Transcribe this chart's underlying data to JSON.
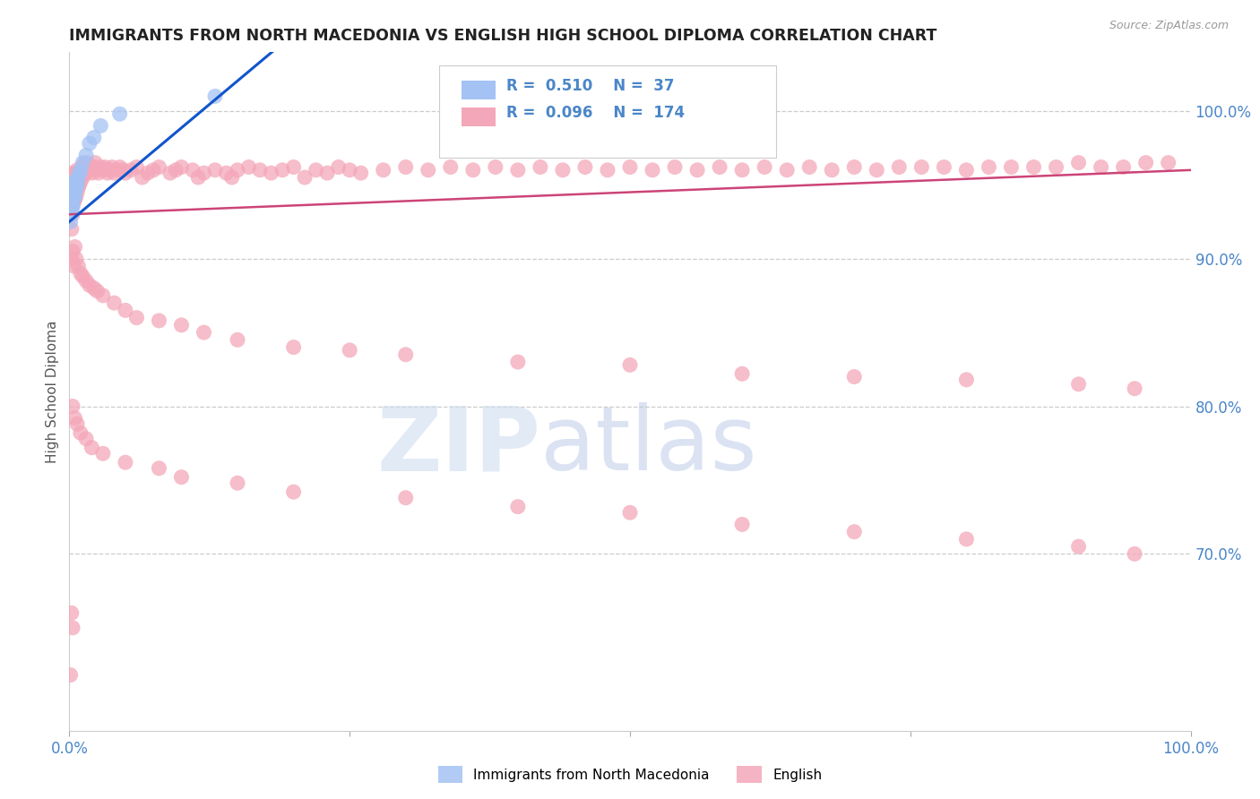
{
  "title": "IMMIGRANTS FROM NORTH MACEDONIA VS ENGLISH HIGH SCHOOL DIPLOMA CORRELATION CHART",
  "source": "Source: ZipAtlas.com",
  "ylabel": "High School Diploma",
  "legend_label1": "Immigrants from North Macedonia",
  "legend_label2": "English",
  "R1": 0.51,
  "N1": 37,
  "R2": 0.096,
  "N2": 174,
  "blue_color": "#a4c2f4",
  "pink_color": "#f4a7b9",
  "blue_line_color": "#1155cc",
  "pink_line_color": "#cc4477",
  "right_ytick_labels": [
    "70.0%",
    "80.0%",
    "90.0%",
    "100.0%"
  ],
  "right_ytick_values": [
    0.7,
    0.8,
    0.9,
    1.0
  ],
  "xlim": [
    0.0,
    1.0
  ],
  "ylim": [
    0.58,
    1.04
  ],
  "background_color": "#ffffff",
  "watermark_zip": "ZIP",
  "watermark_atlas": "atlas",
  "blue_scatter_x": [
    0.001,
    0.001,
    0.001,
    0.001,
    0.002,
    0.002,
    0.002,
    0.002,
    0.002,
    0.003,
    0.003,
    0.003,
    0.003,
    0.003,
    0.003,
    0.004,
    0.004,
    0.004,
    0.004,
    0.005,
    0.005,
    0.005,
    0.005,
    0.006,
    0.006,
    0.007,
    0.007,
    0.008,
    0.009,
    0.01,
    0.012,
    0.015,
    0.018,
    0.022,
    0.028,
    0.045,
    0.13
  ],
  "blue_scatter_y": [
    0.925,
    0.935,
    0.94,
    0.945,
    0.93,
    0.935,
    0.94,
    0.945,
    0.95,
    0.935,
    0.938,
    0.942,
    0.944,
    0.946,
    0.95,
    0.94,
    0.944,
    0.947,
    0.952,
    0.942,
    0.945,
    0.948,
    0.952,
    0.948,
    0.95,
    0.95,
    0.953,
    0.955,
    0.958,
    0.96,
    0.965,
    0.97,
    0.978,
    0.982,
    0.99,
    0.998,
    1.01
  ],
  "pink_scatter_x": [
    0.001,
    0.001,
    0.002,
    0.002,
    0.002,
    0.003,
    0.003,
    0.003,
    0.003,
    0.004,
    0.004,
    0.004,
    0.005,
    0.005,
    0.005,
    0.006,
    0.006,
    0.006,
    0.007,
    0.007,
    0.007,
    0.008,
    0.008,
    0.009,
    0.009,
    0.01,
    0.01,
    0.011,
    0.011,
    0.012,
    0.012,
    0.013,
    0.013,
    0.014,
    0.015,
    0.015,
    0.016,
    0.016,
    0.017,
    0.018,
    0.019,
    0.02,
    0.021,
    0.022,
    0.023,
    0.025,
    0.026,
    0.028,
    0.03,
    0.032,
    0.034,
    0.036,
    0.038,
    0.04,
    0.042,
    0.045,
    0.048,
    0.05,
    0.055,
    0.06,
    0.065,
    0.07,
    0.075,
    0.08,
    0.09,
    0.095,
    0.1,
    0.11,
    0.115,
    0.12,
    0.13,
    0.14,
    0.145,
    0.15,
    0.16,
    0.17,
    0.18,
    0.19,
    0.2,
    0.21,
    0.22,
    0.23,
    0.24,
    0.25,
    0.26,
    0.28,
    0.3,
    0.32,
    0.34,
    0.36,
    0.38,
    0.4,
    0.42,
    0.44,
    0.46,
    0.48,
    0.5,
    0.52,
    0.54,
    0.56,
    0.58,
    0.6,
    0.62,
    0.64,
    0.66,
    0.68,
    0.7,
    0.72,
    0.74,
    0.76,
    0.78,
    0.8,
    0.82,
    0.84,
    0.86,
    0.88,
    0.9,
    0.92,
    0.94,
    0.96,
    0.98,
    0.002,
    0.003,
    0.004,
    0.005,
    0.006,
    0.008,
    0.01,
    0.012,
    0.015,
    0.018,
    0.022,
    0.025,
    0.03,
    0.04,
    0.05,
    0.06,
    0.08,
    0.1,
    0.12,
    0.15,
    0.2,
    0.25,
    0.3,
    0.4,
    0.5,
    0.6,
    0.7,
    0.8,
    0.9,
    0.95,
    0.003,
    0.005,
    0.007,
    0.01,
    0.015,
    0.02,
    0.03,
    0.05,
    0.08,
    0.1,
    0.15,
    0.2,
    0.3,
    0.4,
    0.5,
    0.6,
    0.7,
    0.8,
    0.9,
    0.95,
    0.001,
    0.002,
    0.003
  ],
  "pink_scatter_y": [
    0.94,
    0.95,
    0.92,
    0.935,
    0.955,
    0.93,
    0.942,
    0.95,
    0.958,
    0.938,
    0.945,
    0.952,
    0.94,
    0.948,
    0.955,
    0.942,
    0.95,
    0.958,
    0.945,
    0.952,
    0.96,
    0.948,
    0.955,
    0.95,
    0.958,
    0.952,
    0.96,
    0.955,
    0.962,
    0.955,
    0.962,
    0.958,
    0.964,
    0.96,
    0.958,
    0.962,
    0.96,
    0.965,
    0.962,
    0.96,
    0.962,
    0.958,
    0.96,
    0.962,
    0.965,
    0.96,
    0.958,
    0.962,
    0.96,
    0.962,
    0.958,
    0.96,
    0.962,
    0.958,
    0.96,
    0.962,
    0.96,
    0.958,
    0.96,
    0.962,
    0.955,
    0.958,
    0.96,
    0.962,
    0.958,
    0.96,
    0.962,
    0.96,
    0.955,
    0.958,
    0.96,
    0.958,
    0.955,
    0.96,
    0.962,
    0.96,
    0.958,
    0.96,
    0.962,
    0.955,
    0.96,
    0.958,
    0.962,
    0.96,
    0.958,
    0.96,
    0.962,
    0.96,
    0.962,
    0.96,
    0.962,
    0.96,
    0.962,
    0.96,
    0.962,
    0.96,
    0.962,
    0.96,
    0.962,
    0.96,
    0.962,
    0.96,
    0.962,
    0.96,
    0.962,
    0.96,
    0.962,
    0.96,
    0.962,
    0.962,
    0.962,
    0.96,
    0.962,
    0.962,
    0.962,
    0.962,
    0.965,
    0.962,
    0.962,
    0.965,
    0.965,
    0.9,
    0.905,
    0.895,
    0.908,
    0.9,
    0.895,
    0.89,
    0.888,
    0.885,
    0.882,
    0.88,
    0.878,
    0.875,
    0.87,
    0.865,
    0.86,
    0.858,
    0.855,
    0.85,
    0.845,
    0.84,
    0.838,
    0.835,
    0.83,
    0.828,
    0.822,
    0.82,
    0.818,
    0.815,
    0.812,
    0.8,
    0.792,
    0.788,
    0.782,
    0.778,
    0.772,
    0.768,
    0.762,
    0.758,
    0.752,
    0.748,
    0.742,
    0.738,
    0.732,
    0.728,
    0.72,
    0.715,
    0.71,
    0.705,
    0.7,
    0.618,
    0.66,
    0.65
  ]
}
